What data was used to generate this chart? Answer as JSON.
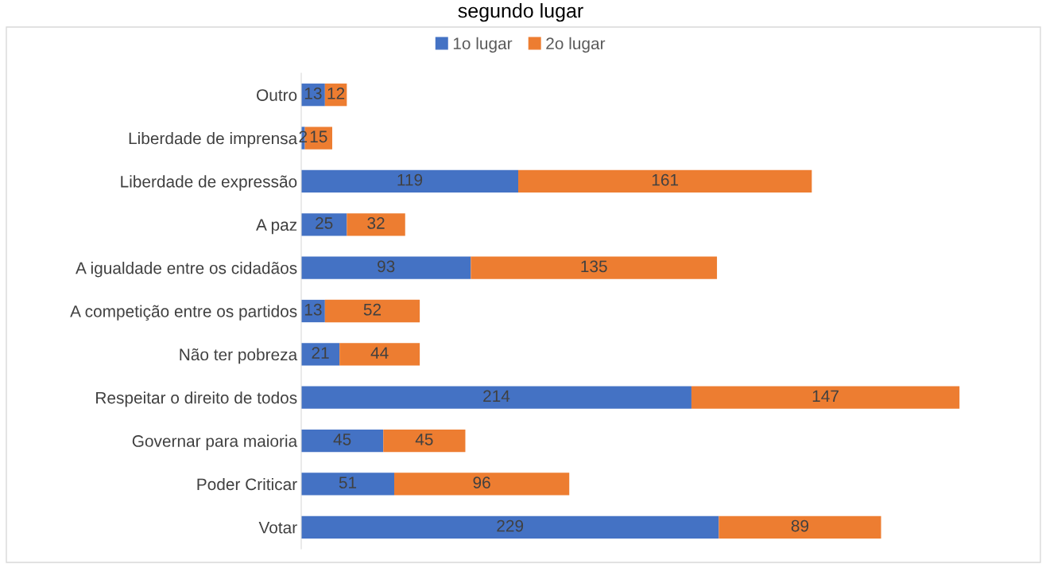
{
  "chart_data": {
    "type": "bar",
    "orientation": "horizontal",
    "stacked": true,
    "data_labels": true,
    "legend": "top",
    "grid": false,
    "tick_labels": "y",
    "title": "segundo lugar",
    "categories": [
      "Outro",
      "Liberdade de imprensa",
      "Liberdade de expressão",
      "A paz",
      "A igualdade entre os cidadãos",
      "A competição entre os partidos",
      "Não ter pobreza",
      "Respeitar o direito de todos",
      "Governar para maioria",
      "Poder Criticar",
      "Votar"
    ],
    "series": [
      {
        "name": "1o lugar",
        "color": "#4472c4",
        "values": [
          13,
          2,
          119,
          25,
          93,
          13,
          21,
          214,
          45,
          51,
          229
        ]
      },
      {
        "name": "2o lugar",
        "color": "#ed7d31",
        "values": [
          12,
          15,
          161,
          32,
          135,
          52,
          44,
          147,
          45,
          96,
          89
        ]
      }
    ]
  }
}
